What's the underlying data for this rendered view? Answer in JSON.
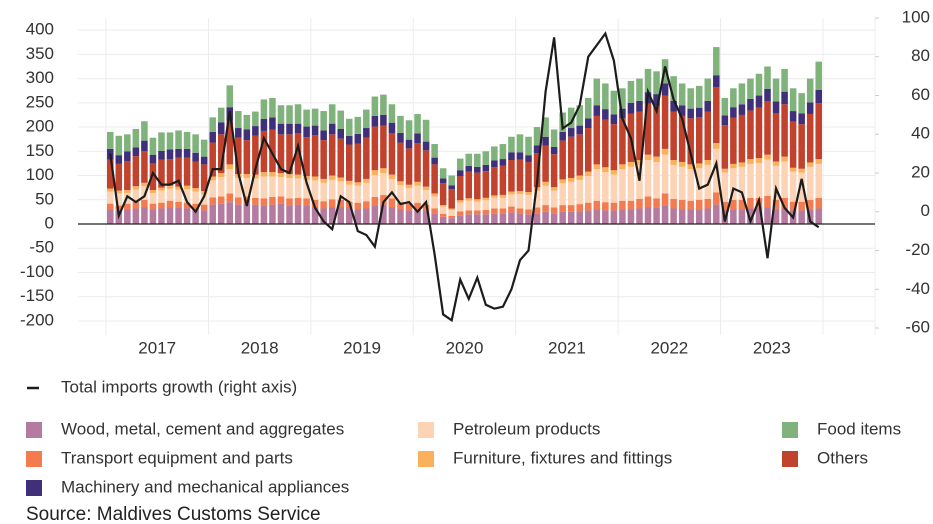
{
  "chart_data": {
    "type": "bar",
    "stacked": true,
    "categories": [
      null,
      null,
      null,
      null,
      null,
      "2017",
      null,
      null,
      null,
      null,
      null,
      null,
      null,
      null,
      null,
      null,
      null,
      "2018",
      null,
      null,
      null,
      null,
      null,
      null,
      null,
      null,
      null,
      null,
      null,
      "2019",
      null,
      null,
      null,
      null,
      null,
      null,
      null,
      null,
      null,
      null,
      null,
      "2020",
      null,
      null,
      null,
      null,
      null,
      null,
      null,
      null,
      null,
      null,
      null,
      "2021",
      null,
      null,
      null,
      null,
      null,
      null,
      null,
      null,
      null,
      null,
      null,
      "2022",
      null,
      null,
      null,
      null,
      null,
      null,
      null,
      null,
      null,
      null,
      null,
      "2023",
      null,
      null,
      null,
      null,
      null,
      null
    ],
    "ylim": [
      -229,
      425
    ],
    "yticks": [
      -200,
      -150,
      -100,
      -50,
      0,
      50,
      100,
      150,
      200,
      250,
      300,
      350,
      400
    ],
    "y2lim": [
      -63.6,
      100
    ],
    "y2ticks": [
      -60,
      -40,
      -20,
      0,
      20,
      40,
      60,
      80,
      100
    ],
    "grid": true,
    "series": [
      {
        "name": "Wood, metal, cement and aggregates",
        "color": "#b57aa0",
        "values": [
          30,
          28,
          30,
          32,
          35,
          30,
          32,
          34,
          33,
          32,
          30,
          28,
          40,
          42,
          45,
          40,
          42,
          40,
          38,
          40,
          42,
          38,
          40,
          38,
          35,
          32,
          35,
          35,
          32,
          30,
          32,
          38,
          40,
          35,
          30,
          28,
          30,
          28,
          22,
          15,
          12,
          18,
          20,
          20,
          20,
          22,
          22,
          24,
          22,
          20,
          22,
          25,
          22,
          25,
          25,
          26,
          28,
          30,
          28,
          28,
          30,
          30,
          32,
          35,
          33,
          38,
          32,
          30,
          30,
          30,
          32,
          40,
          28,
          30,
          30,
          32,
          32,
          34,
          30,
          32,
          28,
          28,
          30,
          32
        ]
      },
      {
        "name": "Transport equipment and parts",
        "color": "#f47b50",
        "values": [
          12,
          10,
          12,
          14,
          15,
          12,
          12,
          14,
          13,
          12,
          12,
          12,
          15,
          15,
          18,
          15,
          15,
          14,
          15,
          16,
          15,
          15,
          14,
          15,
          15,
          15,
          16,
          15,
          14,
          14,
          15,
          18,
          20,
          18,
          15,
          14,
          14,
          12,
          10,
          6,
          5,
          8,
          8,
          8,
          9,
          10,
          10,
          12,
          10,
          10,
          12,
          14,
          12,
          14,
          14,
          15,
          16,
          18,
          17,
          16,
          18,
          18,
          20,
          22,
          20,
          25,
          20,
          20,
          18,
          20,
          20,
          25,
          18,
          20,
          20,
          22,
          22,
          24,
          20,
          22,
          18,
          18,
          20,
          22
        ]
      },
      {
        "name": "Petroleum products",
        "color": "#fdd3b5",
        "values": [
          25,
          25,
          22,
          25,
          28,
          22,
          25,
          25,
          25,
          28,
          25,
          22,
          35,
          40,
          50,
          40,
          38,
          40,
          45,
          42,
          40,
          42,
          40,
          38,
          40,
          38,
          40,
          38,
          35,
          35,
          38,
          45,
          45,
          40,
          35,
          32,
          35,
          30,
          25,
          15,
          12,
          18,
          20,
          18,
          20,
          22,
          22,
          25,
          30,
          30,
          35,
          40,
          35,
          45,
          48,
          50,
          55,
          65,
          62,
          58,
          65,
          70,
          70,
          75,
          75,
          80,
          70,
          68,
          65,
          65,
          70,
          90,
          60,
          65,
          68,
          70,
          72,
          75,
          70,
          75,
          62,
          60,
          68,
          70
        ]
      },
      {
        "name": "Furniture, fixtures and fittings",
        "color": "#fbb05c",
        "values": [
          6,
          6,
          6,
          7,
          7,
          6,
          6,
          6,
          6,
          7,
          7,
          6,
          8,
          8,
          10,
          8,
          8,
          8,
          9,
          9,
          8,
          8,
          8,
          8,
          8,
          8,
          9,
          8,
          8,
          7,
          8,
          10,
          10,
          9,
          8,
          7,
          8,
          7,
          6,
          3,
          3,
          5,
          5,
          5,
          5,
          5,
          6,
          6,
          6,
          6,
          7,
          8,
          7,
          8,
          8,
          9,
          9,
          10,
          10,
          9,
          10,
          10,
          10,
          11,
          11,
          12,
          10,
          10,
          10,
          10,
          10,
          12,
          8,
          9,
          9,
          10,
          10,
          10,
          9,
          10,
          8,
          8,
          9,
          10
        ]
      },
      {
        "name": "Others",
        "color": "#c2432d",
        "values": [
          60,
          55,
          60,
          62,
          65,
          55,
          58,
          55,
          60,
          58,
          55,
          55,
          70,
          80,
          90,
          75,
          70,
          80,
          85,
          88,
          80,
          82,
          85,
          80,
          85,
          80,
          85,
          80,
          75,
          80,
          85,
          90,
          88,
          85,
          80,
          75,
          80,
          75,
          60,
          45,
          40,
          50,
          55,
          55,
          55,
          58,
          60,
          65,
          65,
          62,
          70,
          75,
          68,
          80,
          85,
          85,
          90,
          100,
          98,
          95,
          95,
          100,
          100,
          105,
          105,
          110,
          100,
          95,
          95,
          95,
          100,
          115,
          90,
          95,
          98,
          100,
          104,
          110,
          100,
          108,
          95,
          92,
          100,
          115
        ]
      },
      {
        "name": "Machinery and mechanical appliances",
        "color": "#40307a",
        "values": [
          22,
          18,
          20,
          18,
          22,
          18,
          18,
          20,
          18,
          18,
          18,
          16,
          22,
          25,
          28,
          20,
          22,
          20,
          25,
          25,
          22,
          22,
          20,
          22,
          20,
          20,
          22,
          20,
          18,
          20,
          20,
          22,
          22,
          22,
          20,
          18,
          20,
          18,
          14,
          10,
          8,
          12,
          12,
          12,
          13,
          14,
          14,
          16,
          15,
          14,
          16,
          18,
          15,
          18,
          18,
          18,
          20,
          22,
          22,
          20,
          20,
          22,
          22,
          24,
          24,
          25,
          22,
          22,
          20,
          20,
          22,
          25,
          20,
          22,
          22,
          24,
          25,
          26,
          24,
          26,
          22,
          22,
          24,
          28
        ]
      },
      {
        "name": "Food items",
        "color": "#80b27c",
        "values": [
          35,
          40,
          35,
          38,
          40,
          35,
          38,
          35,
          38,
          35,
          38,
          35,
          30,
          30,
          45,
          35,
          30,
          30,
          40,
          40,
          38,
          38,
          40,
          35,
          35,
          40,
          40,
          38,
          35,
          35,
          38,
          40,
          42,
          38,
          35,
          40,
          40,
          45,
          28,
          21,
          20,
          24,
          25,
          27,
          28,
          29,
          31,
          32,
          37,
          38,
          38,
          40,
          36,
          40,
          42,
          42,
          42,
          55,
          53,
          49,
          42,
          45,
          46,
          48,
          47,
          50,
          51,
          45,
          42,
          45,
          46,
          58,
          36,
          39,
          43,
          42,
          45,
          46,
          47,
          47,
          47,
          42,
          49,
          58
        ]
      },
      {
        "name": "Total imports growth (right axis)",
        "color": "#1c1c1c",
        "type": "line",
        "axis": "y2",
        "values": [
          30,
          -2,
          8,
          5,
          8,
          20,
          14,
          14,
          16,
          5,
          0,
          8,
          22,
          22,
          52,
          20,
          3,
          22,
          38,
          30,
          22,
          20,
          34,
          15,
          2,
          -5,
          -9,
          8,
          5,
          -10,
          -12,
          -18,
          5,
          10,
          4,
          5,
          0,
          5,
          -22,
          -53,
          -56,
          -35,
          -45,
          -34,
          -48,
          -50,
          -49,
          -40,
          -25,
          -20,
          15,
          62,
          90,
          43,
          46,
          55,
          80,
          86,
          92,
          78,
          48,
          38,
          16,
          62,
          52,
          75,
          58,
          48,
          30,
          12,
          14,
          25,
          -5,
          12,
          10,
          -5,
          6,
          -24,
          12,
          2,
          -3,
          17,
          -5,
          -8
        ]
      }
    ],
    "source": "Source: Maldives Customs Service"
  }
}
